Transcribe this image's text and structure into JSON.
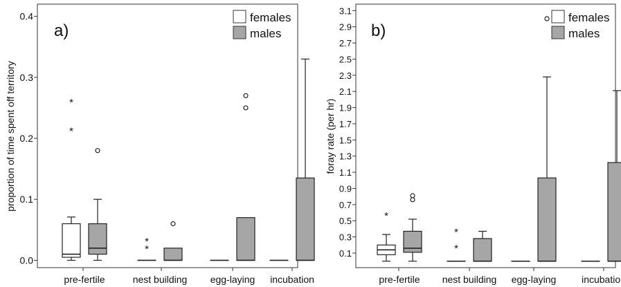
{
  "chart_data": [
    {
      "type": "boxplot",
      "panel_label": "a)",
      "ylabel": "proportion of time spent off territory",
      "categories": [
        "pre-fertile",
        "nest building",
        "egg-laying",
        "incubation"
      ],
      "yticks": [
        "0.0",
        "0.1",
        "0.2",
        "0.3",
        "0.4"
      ],
      "ylim": [
        -0.012,
        0.42
      ],
      "legend": {
        "position": "top-right",
        "entries": [
          "females",
          "males"
        ]
      },
      "colors": {
        "females": "#ffffff",
        "males": "#a6a6a6"
      },
      "series": [
        {
          "name": "females",
          "boxes": [
            {
              "min": 0.0,
              "q1": 0.005,
              "median": 0.01,
              "q3": 0.06,
              "max": 0.071,
              "outliers": [],
              "extremes": [
                0.213,
                0.26
              ]
            },
            {
              "min": 0.0,
              "q1": 0.0,
              "median": 0.0,
              "q3": 0.0,
              "max": 0.0,
              "outliers": [],
              "extremes": [
                0.02,
                0.032
              ]
            },
            {
              "min": 0.0,
              "q1": 0.0,
              "median": 0.0,
              "q3": 0.0,
              "max": 0.0,
              "outliers": [],
              "extremes": []
            },
            {
              "min": 0.0,
              "q1": 0.0,
              "median": 0.0,
              "q3": 0.0,
              "max": 0.0,
              "outliers": [],
              "extremes": []
            }
          ]
        },
        {
          "name": "males",
          "boxes": [
            {
              "min": 0.0,
              "q1": 0.01,
              "median": 0.02,
              "q3": 0.06,
              "max": 0.1,
              "outliers": [
                0.18
              ],
              "extremes": []
            },
            {
              "min": 0.0,
              "q1": 0.0,
              "median": 0.0,
              "q3": 0.02,
              "max": 0.02,
              "outliers": [
                0.06
              ],
              "extremes": []
            },
            {
              "min": 0.0,
              "q1": 0.0,
              "median": 0.0,
              "q3": 0.07,
              "max": 0.07,
              "outliers": [
                0.25,
                0.27
              ],
              "extremes": []
            },
            {
              "min": 0.0,
              "q1": 0.0,
              "median": 0.0,
              "q3": 0.135,
              "max": 0.33,
              "outliers": [],
              "extremes": []
            }
          ]
        }
      ]
    },
    {
      "type": "boxplot",
      "panel_label": "b)",
      "ylabel": "foray rate (per hr)",
      "categories": [
        "pre-fertile",
        "nest building",
        "egg-laying",
        "incubation"
      ],
      "yticks": [
        "0.1",
        "0.3",
        "0.5",
        "0.7",
        "0.9",
        "1.1",
        "1.3",
        "1.5",
        "1.7",
        "1.9",
        "2.1",
        "2.3",
        "2.5",
        "2.7",
        "2.9",
        "3.1"
      ],
      "ylim": [
        -0.08,
        3.18
      ],
      "legend": {
        "position": "top-right",
        "entries": [
          "females",
          "males"
        ]
      },
      "colors": {
        "females": "#ffffff",
        "males": "#a6a6a6"
      },
      "series": [
        {
          "name": "females",
          "boxes": [
            {
              "min": 0.0,
              "q1": 0.08,
              "median": 0.14,
              "q3": 0.2,
              "max": 0.33,
              "outliers": [],
              "extremes": [
                0.57
              ]
            },
            {
              "min": 0.0,
              "q1": 0.0,
              "median": 0.0,
              "q3": 0.0,
              "max": 0.0,
              "outliers": [],
              "extremes": [
                0.17,
                0.37
              ]
            },
            {
              "min": 0.0,
              "q1": 0.0,
              "median": 0.0,
              "q3": 0.0,
              "max": 0.0,
              "outliers": [],
              "extremes": []
            },
            {
              "min": 0.0,
              "q1": 0.0,
              "median": 0.0,
              "q3": 0.0,
              "max": 0.0,
              "outliers": [],
              "extremes": []
            }
          ]
        },
        {
          "name": "males",
          "boxes": [
            {
              "min": 0.0,
              "q1": 0.11,
              "median": 0.16,
              "q3": 0.37,
              "max": 0.52,
              "outliers": [
                0.76,
                0.81
              ],
              "extremes": []
            },
            {
              "min": 0.0,
              "q1": 0.0,
              "median": 0.0,
              "q3": 0.28,
              "max": 0.37,
              "outliers": [],
              "extremes": []
            },
            {
              "min": 0.0,
              "q1": 0.0,
              "median": 0.0,
              "q3": 1.03,
              "max": 2.28,
              "outliers": [
                3.0
              ],
              "extremes": []
            },
            {
              "min": 0.0,
              "q1": 0.0,
              "median": 0.0,
              "q3": 1.22,
              "max": 2.11,
              "outliers": [],
              "extremes": []
            }
          ]
        }
      ]
    }
  ]
}
